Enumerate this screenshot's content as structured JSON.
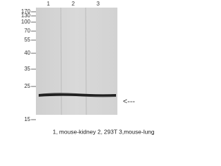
{
  "lanes": [
    "1",
    "2",
    "3"
  ],
  "markers": [
    "170",
    "130",
    "100",
    "70",
    "55",
    "40",
    "35",
    "25",
    "15"
  ],
  "arrow": "<---",
  "caption": "1, mouse-kidney   2, 293T   3,mouse-lung"
}
